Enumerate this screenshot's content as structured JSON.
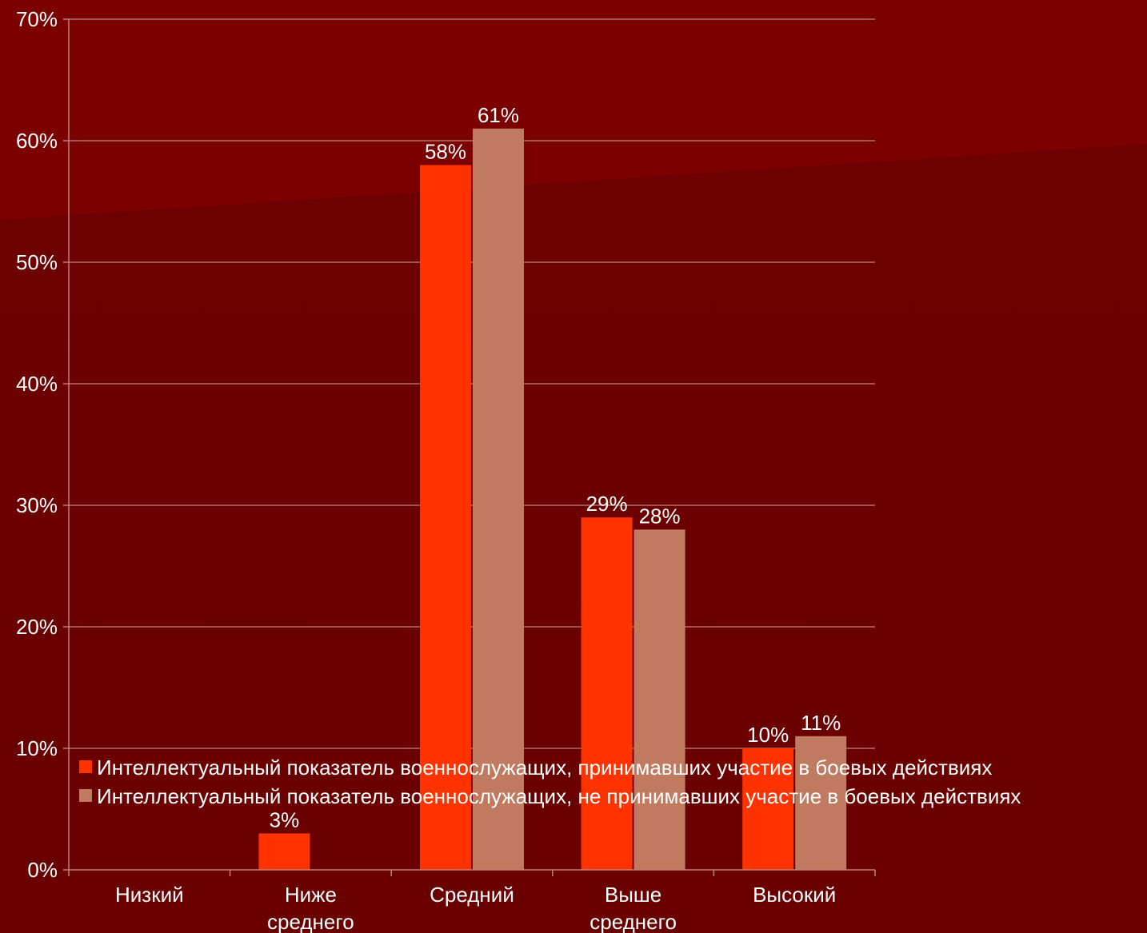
{
  "chart_data": {
    "type": "bar",
    "categories": [
      [
        "Низкий"
      ],
      [
        "Ниже",
        "среднего"
      ],
      [
        "Средний"
      ],
      [
        "Выше",
        "среднего"
      ],
      [
        "Высокий"
      ]
    ],
    "series": [
      {
        "name": "Интеллектуальный показатель военнослужащих, принимавших участие в боевых действиях",
        "color": "#ff3300",
        "values": [
          null,
          3,
          58,
          29,
          10
        ],
        "labels": [
          "",
          "3%",
          "58%",
          "29%",
          "10%"
        ]
      },
      {
        "name": "Интеллектуальный показатель военнослужащих, не принимавших участие в боевых действиях",
        "color": "#c07a60",
        "values": [
          null,
          null,
          61,
          28,
          11
        ],
        "labels": [
          "",
          "",
          "61%",
          "28%",
          "11%"
        ]
      }
    ],
    "ylim": [
      0,
      70
    ],
    "yticks": [
      0,
      10,
      20,
      30,
      40,
      50,
      60,
      70
    ],
    "ytick_labels": [
      "0%",
      "10%",
      "20%",
      "30%",
      "40%",
      "50%",
      "60%",
      "70%"
    ],
    "grid": true,
    "legend": "bottom-left, overlapping plot"
  },
  "colors": {
    "background": "#6e0000",
    "gridline": "#b07070",
    "axis": "#c08080",
    "text": "#ffffff"
  }
}
